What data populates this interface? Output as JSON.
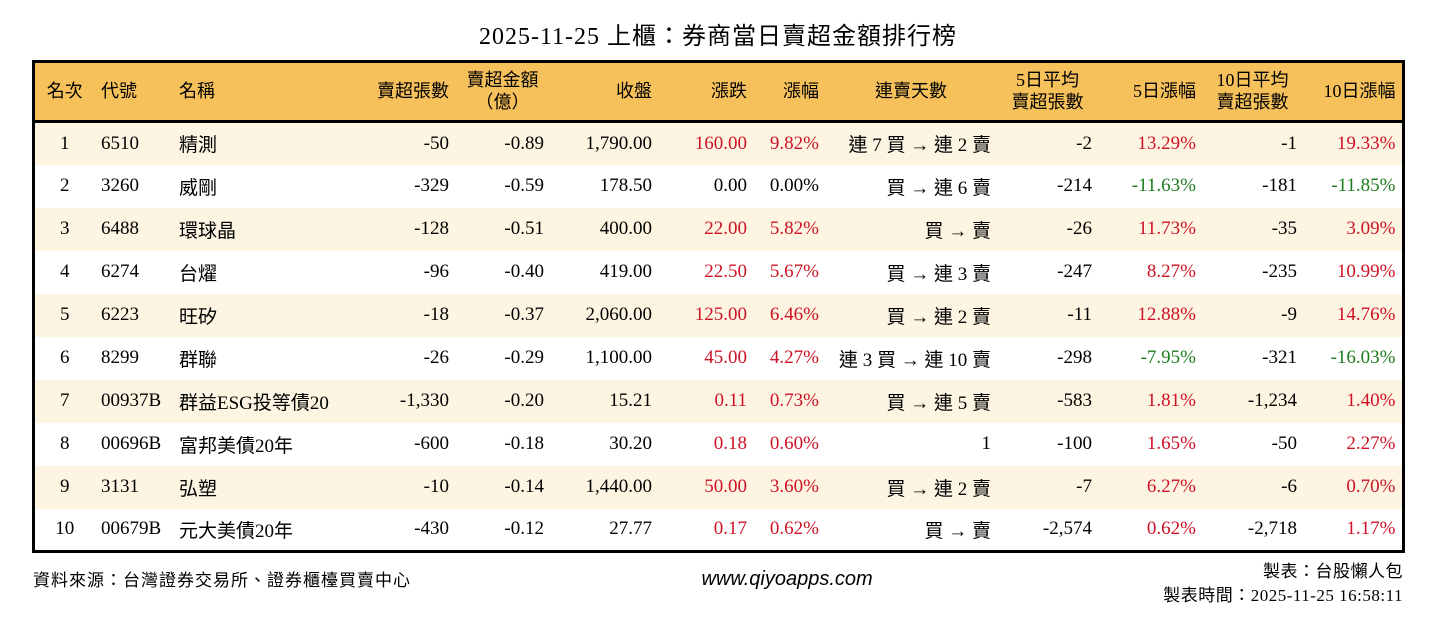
{
  "title": "2025-11-25 上櫃：券商當日賣超金額排行榜",
  "colors": {
    "up": "#cd1225",
    "down": "#1e7d1e",
    "headerbg": "#f6c15b",
    "rowalt": "#fdf5e2",
    "border": "#000000"
  },
  "chart_data": {
    "type": "table",
    "title": "2025-11-25 上櫃：券商當日賣超金額排行榜",
    "columns": [
      "名次",
      "代號",
      "名稱",
      "賣超張數",
      "賣超金額\n（億）",
      "收盤",
      "漲跌",
      "漲幅",
      "連賣天數",
      "5日平均\n賣超張數",
      "5日漲幅",
      "10日平均\n賣超張數",
      "10日漲幅"
    ],
    "rows": [
      [
        "1",
        "6510",
        "精測",
        "-50",
        "-0.89",
        "1,790.00",
        {
          "t": "160.00",
          "c": "up"
        },
        {
          "t": "9.82%",
          "c": "up"
        },
        "連 7 買 → 連 2 賣",
        "-2",
        {
          "t": "13.29%",
          "c": "up"
        },
        "-1",
        {
          "t": "19.33%",
          "c": "up"
        }
      ],
      [
        "2",
        "3260",
        "威剛",
        "-329",
        "-0.59",
        "178.50",
        "0.00",
        "0.00%",
        "買 → 連 6 賣",
        "-214",
        {
          "t": "-11.63%",
          "c": "down"
        },
        "-181",
        {
          "t": "-11.85%",
          "c": "down"
        }
      ],
      [
        "3",
        "6488",
        "環球晶",
        "-128",
        "-0.51",
        "400.00",
        {
          "t": "22.00",
          "c": "up"
        },
        {
          "t": "5.82%",
          "c": "up"
        },
        "買 → 賣",
        "-26",
        {
          "t": "11.73%",
          "c": "up"
        },
        "-35",
        {
          "t": "3.09%",
          "c": "up"
        }
      ],
      [
        "4",
        "6274",
        "台燿",
        "-96",
        "-0.40",
        "419.00",
        {
          "t": "22.50",
          "c": "up"
        },
        {
          "t": "5.67%",
          "c": "up"
        },
        "買 → 連 3 賣",
        "-247",
        {
          "t": "8.27%",
          "c": "up"
        },
        "-235",
        {
          "t": "10.99%",
          "c": "up"
        }
      ],
      [
        "5",
        "6223",
        "旺矽",
        "-18",
        "-0.37",
        "2,060.00",
        {
          "t": "125.00",
          "c": "up"
        },
        {
          "t": "6.46%",
          "c": "up"
        },
        "買 → 連 2 賣",
        "-11",
        {
          "t": "12.88%",
          "c": "up"
        },
        "-9",
        {
          "t": "14.76%",
          "c": "up"
        }
      ],
      [
        "6",
        "8299",
        "群聯",
        "-26",
        "-0.29",
        "1,100.00",
        {
          "t": "45.00",
          "c": "up"
        },
        {
          "t": "4.27%",
          "c": "up"
        },
        "連 3 買 → 連 10 賣",
        "-298",
        {
          "t": "-7.95%",
          "c": "down"
        },
        "-321",
        {
          "t": "-16.03%",
          "c": "down"
        }
      ],
      [
        "7",
        "00937B",
        "群益ESG投等債20",
        "-1,330",
        "-0.20",
        "15.21",
        {
          "t": "0.11",
          "c": "up"
        },
        {
          "t": "0.73%",
          "c": "up"
        },
        "買 → 連 5 賣",
        "-583",
        {
          "t": "1.81%",
          "c": "up"
        },
        "-1,234",
        {
          "t": "1.40%",
          "c": "up"
        }
      ],
      [
        "8",
        "00696B",
        "富邦美債20年",
        "-600",
        "-0.18",
        "30.20",
        {
          "t": "0.18",
          "c": "up"
        },
        {
          "t": "0.60%",
          "c": "up"
        },
        "1",
        "-100",
        {
          "t": "1.65%",
          "c": "up"
        },
        "-50",
        {
          "t": "2.27%",
          "c": "up"
        }
      ],
      [
        "9",
        "3131",
        "弘塑",
        "-10",
        "-0.14",
        "1,440.00",
        {
          "t": "50.00",
          "c": "up"
        },
        {
          "t": "3.60%",
          "c": "up"
        },
        "買 → 連 2 賣",
        "-7",
        {
          "t": "6.27%",
          "c": "up"
        },
        "-6",
        {
          "t": "0.70%",
          "c": "up"
        }
      ],
      [
        "10",
        "00679B",
        "元大美債20年",
        "-430",
        "-0.12",
        "27.77",
        {
          "t": "0.17",
          "c": "up"
        },
        {
          "t": "0.62%",
          "c": "up"
        },
        "買 → 賣",
        "-2,574",
        {
          "t": "0.62%",
          "c": "up"
        },
        "-2,718",
        {
          "t": "1.17%",
          "c": "up"
        }
      ]
    ]
  },
  "footer": {
    "source": "資料來源：台灣證券交易所、證券櫃檯買賣中心",
    "website": "www.qiyoapps.com",
    "author": "製表：台股懶人包",
    "timestamp": "製表時間：2025-11-25 16:58:11"
  }
}
